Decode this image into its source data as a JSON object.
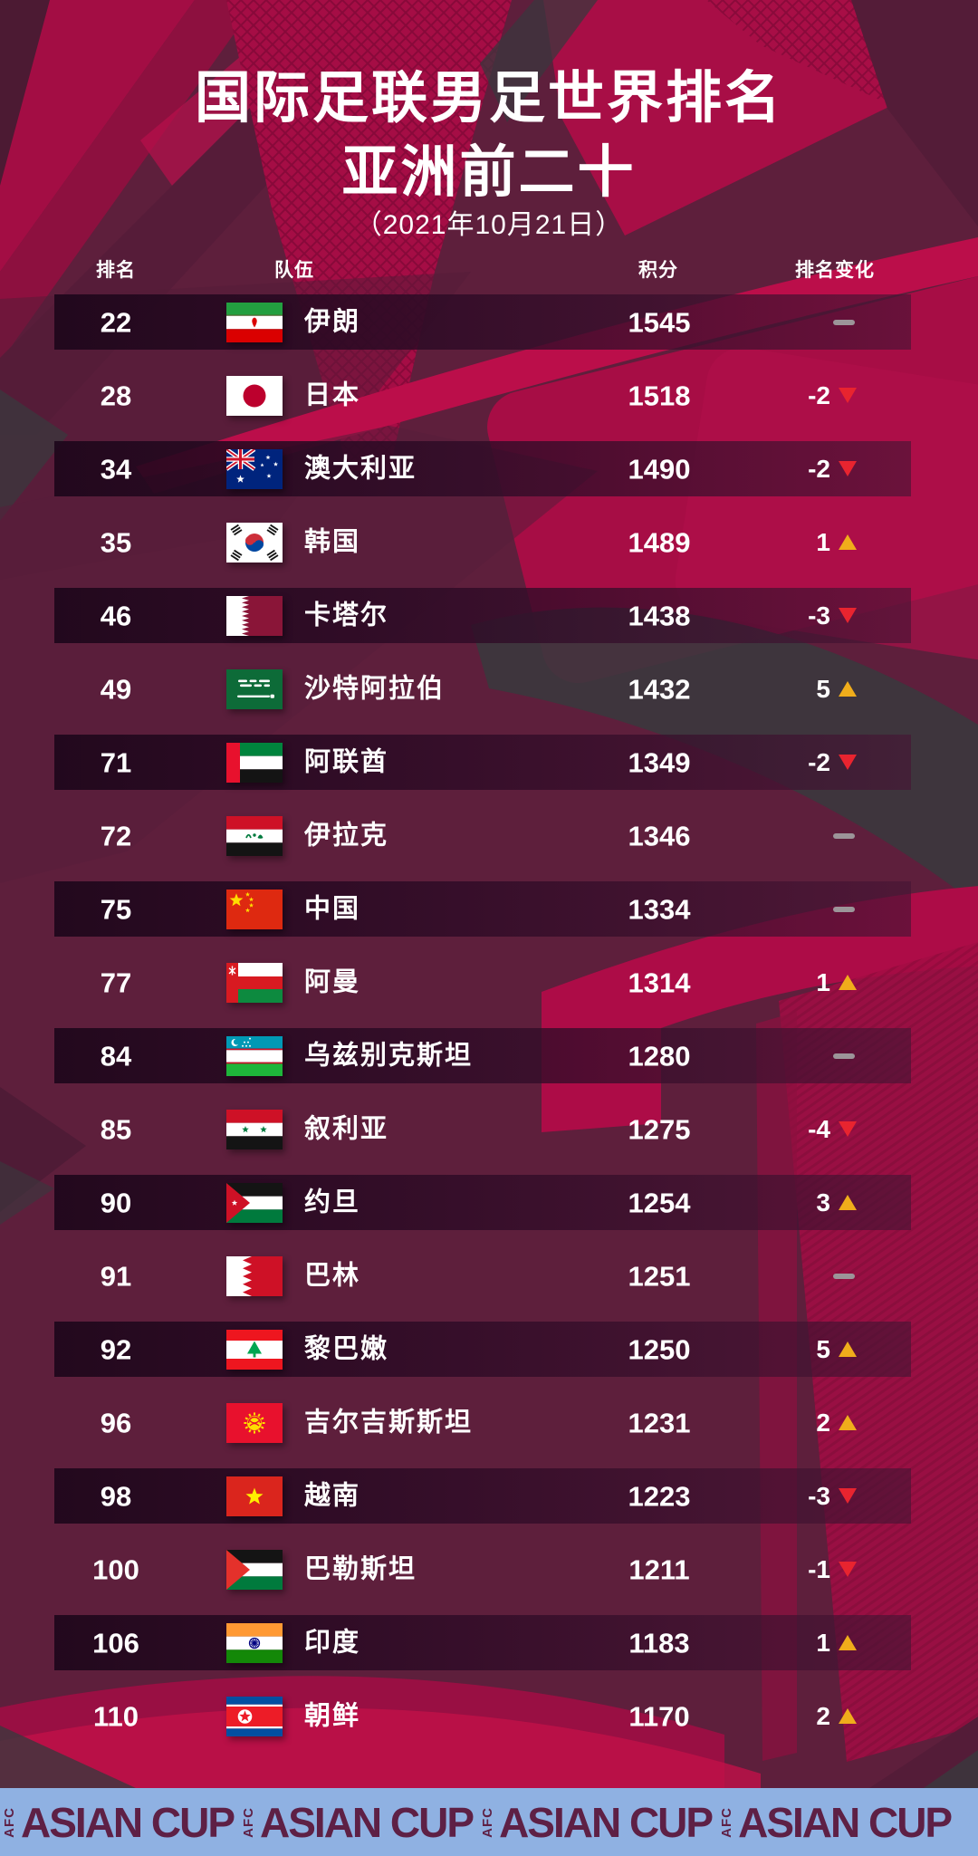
{
  "title": {
    "line1": "国际足联男足世界排名",
    "line2": "亚洲前二十",
    "date": "（2021年10月21日）"
  },
  "table": {
    "headers": {
      "rank": "排名",
      "team": "队伍",
      "points": "积分",
      "change": "排名变化"
    },
    "rows": [
      {
        "rank": "22",
        "flag": "iran",
        "team": "伊朗",
        "points": "1545",
        "change": "",
        "direction": "none"
      },
      {
        "rank": "28",
        "flag": "japan",
        "team": "日本",
        "points": "1518",
        "change": "-2",
        "direction": "down"
      },
      {
        "rank": "34",
        "flag": "australia",
        "team": "澳大利亚",
        "points": "1490",
        "change": "-2",
        "direction": "down"
      },
      {
        "rank": "35",
        "flag": "south-korea",
        "team": "韩国",
        "points": "1489",
        "change": "1",
        "direction": "up"
      },
      {
        "rank": "46",
        "flag": "qatar",
        "team": "卡塔尔",
        "points": "1438",
        "change": "-3",
        "direction": "down"
      },
      {
        "rank": "49",
        "flag": "saudi-arabia",
        "team": "沙特阿拉伯",
        "points": "1432",
        "change": "5",
        "direction": "up"
      },
      {
        "rank": "71",
        "flag": "uae",
        "team": "阿联酋",
        "points": "1349",
        "change": "-2",
        "direction": "down"
      },
      {
        "rank": "72",
        "flag": "iraq",
        "team": "伊拉克",
        "points": "1346",
        "change": "",
        "direction": "none"
      },
      {
        "rank": "75",
        "flag": "china",
        "team": "中国",
        "points": "1334",
        "change": "",
        "direction": "none"
      },
      {
        "rank": "77",
        "flag": "oman",
        "team": "阿曼",
        "points": "1314",
        "change": "1",
        "direction": "up"
      },
      {
        "rank": "84",
        "flag": "uzbekistan",
        "team": "乌兹别克斯坦",
        "points": "1280",
        "change": "",
        "direction": "none"
      },
      {
        "rank": "85",
        "flag": "syria",
        "team": "叙利亚",
        "points": "1275",
        "change": "-4",
        "direction": "down"
      },
      {
        "rank": "90",
        "flag": "jordan",
        "team": "约旦",
        "points": "1254",
        "change": "3",
        "direction": "up"
      },
      {
        "rank": "91",
        "flag": "bahrain",
        "team": "巴林",
        "points": "1251",
        "change": "",
        "direction": "none"
      },
      {
        "rank": "92",
        "flag": "lebanon",
        "team": "黎巴嫩",
        "points": "1250",
        "change": "5",
        "direction": "up"
      },
      {
        "rank": "96",
        "flag": "kyrgyzstan",
        "team": "吉尔吉斯斯坦",
        "points": "1231",
        "change": "2",
        "direction": "up"
      },
      {
        "rank": "98",
        "flag": "vietnam",
        "team": "越南",
        "points": "1223",
        "change": "-3",
        "direction": "down"
      },
      {
        "rank": "100",
        "flag": "palestine",
        "team": "巴勒斯坦",
        "points": "1211",
        "change": "-1",
        "direction": "down"
      },
      {
        "rank": "106",
        "flag": "india",
        "team": "印度",
        "points": "1183",
        "change": "1",
        "direction": "up"
      },
      {
        "rank": "110",
        "flag": "north-korea",
        "team": "朝鲜",
        "points": "1170",
        "change": "2",
        "direction": "up"
      }
    ]
  },
  "banner": {
    "afc_label": "AFC",
    "cup_label": "ASIAN CUP",
    "repeat": 4
  },
  "colors": {
    "background": "#5e1f3c",
    "accent_crimson": "#ad0e47",
    "charcoal": "#3b373d",
    "row_bar_dark": "#1c061a",
    "up_arrow": "#f0ad1b",
    "down_arrow": "#e8242f",
    "no_change_dash": "#9c9599",
    "banner_blue": "#8fb1e2",
    "banner_text": "#5e2045",
    "text": "#ffffff"
  }
}
